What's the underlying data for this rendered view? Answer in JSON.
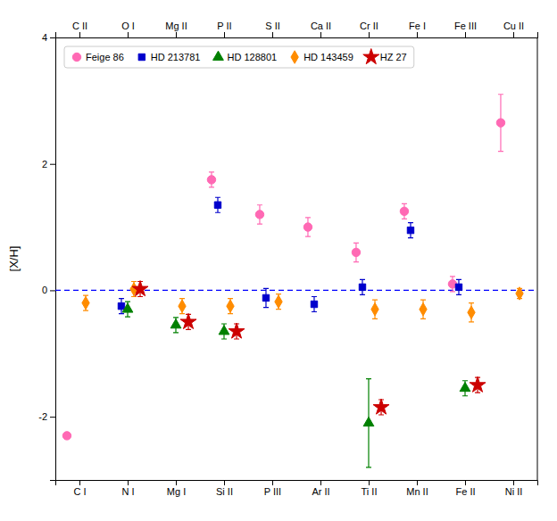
{
  "chart_data": {
    "type": "scatter",
    "categories": [
      "C I",
      "N I",
      "Mg I",
      "Si II",
      "P III",
      "Ar II",
      "Ti II",
      "Mn II",
      "Fe II",
      "Ni II"
    ],
    "top_categories": [
      "C II",
      "O I",
      "Mg II",
      "P II",
      "S II",
      "Ca II",
      "Cr II",
      "Fe I",
      "Fe III",
      "Cu II"
    ],
    "ylabel": "[X/H]",
    "ylim": [
      -3.0,
      4.0
    ],
    "yticks": [
      -2,
      0,
      2,
      4
    ],
    "grid": false,
    "legend": "upper left",
    "hlines": [
      {
        "value": 0,
        "color": "blue",
        "line_style": "dashed"
      }
    ],
    "series": [
      {
        "name": "Feige 86",
        "color": "#FF69B4",
        "marker": "circle",
        "values": [
          -2.3,
          null,
          null,
          1.75,
          1.2,
          1.0,
          0.6,
          1.25,
          0.1,
          2.65
        ],
        "errors": [
          0,
          null,
          null,
          0.12,
          0.15,
          0.15,
          0.15,
          0.12,
          0.12,
          0.45
        ]
      },
      {
        "name": "HD 213781",
        "color": "#0000CC",
        "marker": "square",
        "values": [
          null,
          -0.25,
          null,
          1.35,
          -0.12,
          -0.22,
          0.05,
          0.95,
          0.05,
          null
        ],
        "errors": [
          null,
          0.12,
          null,
          0.12,
          0.15,
          0.12,
          0.12,
          0.12,
          0.12,
          null
        ]
      },
      {
        "name": "HD 128801",
        "color": "#008000",
        "marker": "triangle",
        "values": [
          null,
          -0.3,
          -0.55,
          -0.65,
          null,
          null,
          -2.1,
          null,
          -1.55,
          null
        ],
        "errors": [
          null,
          0.12,
          0.12,
          0.12,
          null,
          null,
          0.7,
          null,
          0.12,
          null
        ]
      },
      {
        "name": "HD 143459",
        "color": "#FF8C00",
        "marker": "diamond",
        "values": [
          -0.2,
          0.02,
          -0.25,
          -0.25,
          -0.18,
          null,
          -0.3,
          -0.3,
          -0.35,
          -0.05
        ],
        "errors": [
          0.12,
          0.12,
          0.12,
          0.12,
          0.12,
          null,
          0.15,
          0.15,
          0.15,
          0.08
        ]
      },
      {
        "name": "HZ 27",
        "color": "#CC0000",
        "marker": "star",
        "values": [
          null,
          0.02,
          -0.5,
          -0.65,
          null,
          null,
          -1.85,
          null,
          -1.5,
          null
        ],
        "errors": [
          null,
          0.12,
          0.12,
          0.12,
          null,
          null,
          0.12,
          null,
          0.12,
          null
        ]
      }
    ]
  }
}
